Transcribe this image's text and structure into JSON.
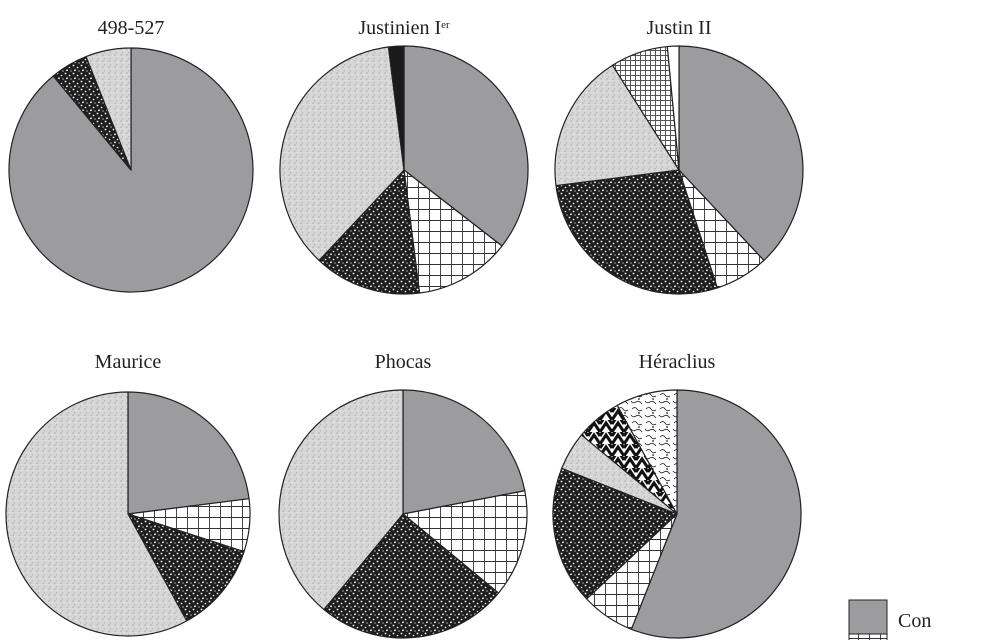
{
  "chart_data": [
    {
      "type": "pie",
      "title": "498-527",
      "title_sup": "",
      "slices": [
        {
          "category": "Con",
          "value": 0.89
        },
        {
          "category": "pattern-dark-speckle",
          "value": 0.05
        },
        {
          "category": "pattern-light-speckle",
          "value": 0.06
        }
      ]
    },
    {
      "type": "pie",
      "title": "Justinien I",
      "title_sup": "er",
      "slices": [
        {
          "category": "Con",
          "value": 0.355
        },
        {
          "category": "pattern-grid",
          "value": 0.125
        },
        {
          "category": "pattern-dark-speckle",
          "value": 0.14
        },
        {
          "category": "pattern-light-speckle",
          "value": 0.36
        },
        {
          "category": "pattern-solid-black",
          "value": 0.02
        }
      ]
    },
    {
      "type": "pie",
      "title": "Justin II",
      "title_sup": "",
      "slices": [
        {
          "category": "Con",
          "value": 0.38
        },
        {
          "category": "pattern-grid",
          "value": 0.07
        },
        {
          "category": "pattern-dark-speckle",
          "value": 0.28
        },
        {
          "category": "pattern-light-speckle",
          "value": 0.18
        },
        {
          "category": "pattern-fine-grid",
          "value": 0.075
        },
        {
          "category": "pattern-white",
          "value": 0.015
        }
      ]
    },
    {
      "type": "pie",
      "title": "Maurice",
      "title_sup": "",
      "slices": [
        {
          "category": "Con",
          "value": 0.23
        },
        {
          "category": "pattern-grid",
          "value": 0.07
        },
        {
          "category": "pattern-dark-speckle",
          "value": 0.12
        },
        {
          "category": "pattern-light-speckle",
          "value": 0.58
        }
      ]
    },
    {
      "type": "pie",
      "title": "Phocas",
      "title_sup": "",
      "slices": [
        {
          "category": "Con",
          "value": 0.22
        },
        {
          "category": "pattern-grid",
          "value": 0.14
        },
        {
          "category": "pattern-dark-speckle",
          "value": 0.25
        },
        {
          "category": "pattern-light-speckle",
          "value": 0.39
        }
      ]
    },
    {
      "type": "pie",
      "title": "Héraclius",
      "title_sup": "",
      "slices": [
        {
          "category": "Con",
          "value": 0.56
        },
        {
          "category": "pattern-grid",
          "value": 0.07
        },
        {
          "category": "pattern-dark-speckle",
          "value": 0.18
        },
        {
          "category": "pattern-light-speckle",
          "value": 0.05
        },
        {
          "category": "pattern-chevron",
          "value": 0.06
        },
        {
          "category": "pattern-swirl",
          "value": 0.08
        }
      ]
    }
  ],
  "legend": {
    "position": "bottom-right",
    "items": [
      {
        "label": "Con",
        "category": "Con"
      }
    ]
  },
  "colors": {
    "Con": "#9c9c9e",
    "outline": "#222222"
  }
}
